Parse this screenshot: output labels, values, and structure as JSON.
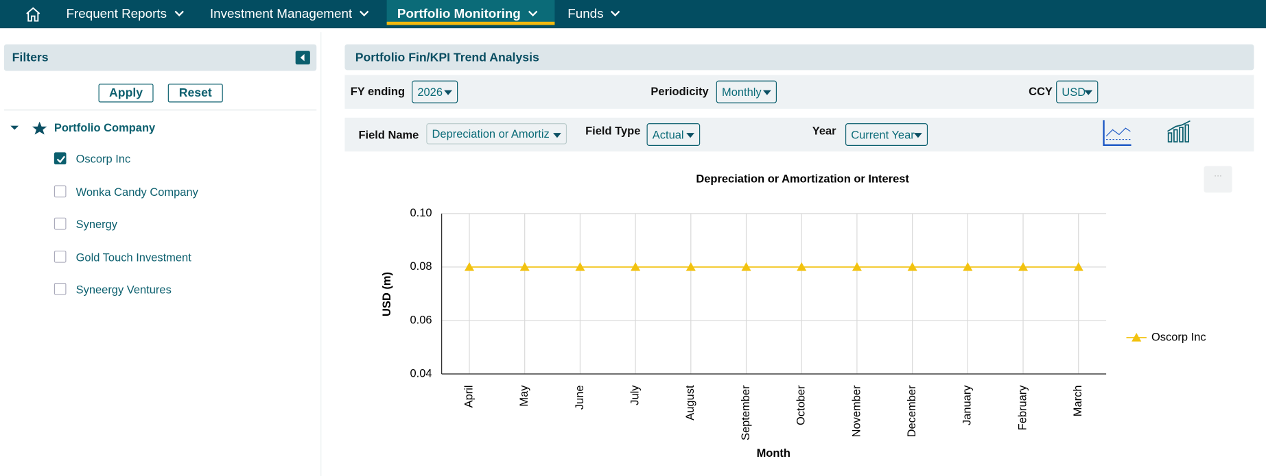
{
  "nav": {
    "items": [
      "Frequent Reports",
      "Investment Management",
      "Portfolio Monitoring",
      "Funds"
    ],
    "active": 2
  },
  "filters": {
    "title": "Filters",
    "apply": "Apply",
    "reset": "Reset",
    "group": "Portfolio Company",
    "companies": [
      {
        "label": "Oscorp Inc",
        "checked": true
      },
      {
        "label": "Wonka Candy Company",
        "checked": false
      },
      {
        "label": "Synergy",
        "checked": false
      },
      {
        "label": "Gold Touch Investment",
        "checked": false
      },
      {
        "label": "Syneergy Ventures",
        "checked": false
      }
    ]
  },
  "panel": {
    "title": "Portfolio Fin/KPI Trend Analysis",
    "fy_label": "FY ending",
    "fy_value": "2026",
    "periodicity_label": "Periodicity",
    "periodicity_value": "Monthly",
    "ccy_label": "CCY",
    "ccy_value": "USD",
    "field_name_label": "Field Name",
    "field_name_value": "Depreciation or Amortiz",
    "field_type_label": "Field Type",
    "field_type_value": "Actual",
    "year_label": "Year",
    "year_value": "Current Year"
  },
  "chart_data": {
    "type": "line",
    "title": "Depreciation or Amortization or Interest",
    "x_label": "Month",
    "y_label": "USD (m)",
    "categories": [
      "April",
      "May",
      "June",
      "July",
      "August",
      "September",
      "October",
      "November",
      "December",
      "January",
      "February",
      "March"
    ],
    "series": [
      {
        "name": "Oscorp Inc",
        "color": "#f2c20f",
        "values": [
          0.08,
          0.08,
          0.08,
          0.08,
          0.08,
          0.08,
          0.08,
          0.08,
          0.08,
          0.08,
          0.08,
          0.08
        ]
      }
    ],
    "ylim": [
      0.04,
      0.1
    ],
    "yticks": [
      {
        "value": 0.1,
        "label": "0.10"
      },
      0.08,
      0.06,
      0.04
    ],
    "grid": true,
    "legend": "right"
  }
}
